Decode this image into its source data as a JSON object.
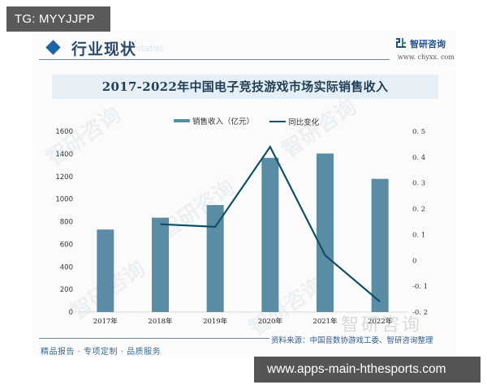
{
  "overlay": {
    "tg_label": "TG: MYYJJPP",
    "site_url": "www.apps-main-hthesports.com"
  },
  "header": {
    "section_title": "行业现状",
    "section_subtitle": "status",
    "brand_name": "智研咨询",
    "brand_url": "www. chyxx. com"
  },
  "footer": {
    "slogan": "精品报告 · 专项定制 · 品质服务",
    "source": "资料来源：中国音数协游戏工委、智研咨询整理",
    "watermark": "智研咨询"
  },
  "colors": {
    "bar": "#5b8ca6",
    "line": "#0f5066",
    "title_band": "#e6eff6",
    "accent": "#1b64a3"
  },
  "chart_data": {
    "type": "bar+line",
    "title": "2017-2022年中国电子竞技游戏市场实际销售收入",
    "categories": [
      "2017年",
      "2018年",
      "2019年",
      "2020年",
      "2021年",
      "2022年"
    ],
    "series": [
      {
        "name": "销售收入（亿元）",
        "type": "bar",
        "axis": "left",
        "values": [
          730,
          835,
          947,
          1365,
          1403,
          1179
        ]
      },
      {
        "name": "同比变化",
        "type": "line",
        "axis": "right",
        "values": [
          null,
          0.14,
          0.13,
          0.44,
          0.02,
          -0.16
        ]
      }
    ],
    "left_axis": {
      "ticks": [
        "0",
        "200",
        "400",
        "600",
        "800",
        "1000",
        "1200",
        "1400",
        "1600"
      ],
      "ylim": [
        0,
        1600
      ]
    },
    "right_axis": {
      "ticks": [
        "-0.2",
        "-0.1",
        "0",
        "0.1",
        "0.2",
        "0.3",
        "0.4",
        "0.5"
      ],
      "ylim": [
        -0.2,
        0.5
      ]
    },
    "xlabel": "",
    "ylabel": "",
    "legend_position": "top",
    "grid": false
  }
}
